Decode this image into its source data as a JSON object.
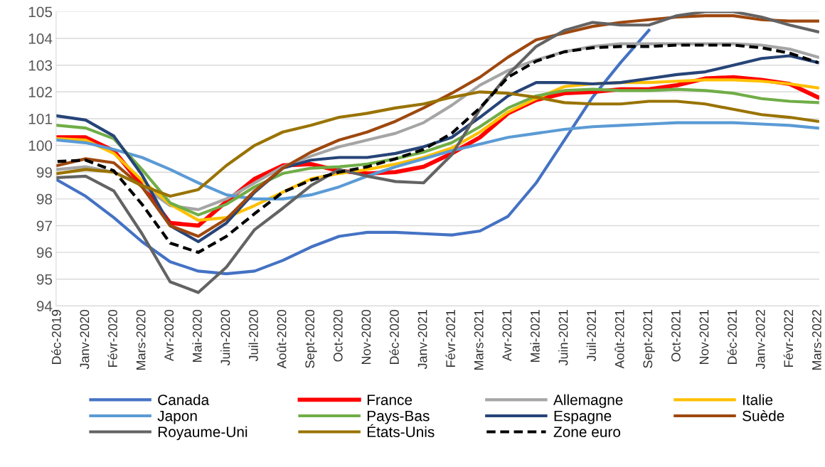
{
  "chart_data": {
    "type": "line",
    "categories": [
      "Déc-2019",
      "Janv-2020",
      "Févr-2020",
      "Mars-2020",
      "Avr-2020",
      "Mai-2020",
      "Juin-2020",
      "Juil-2020",
      "Août-2020",
      "Sept-2020",
      "Oct-2020",
      "Nov-2020",
      "Déc-2020",
      "Janv-2021",
      "Févr-2021",
      "Mars-2021",
      "Avr-2021",
      "Mai-2021",
      "Juin-2021",
      "Juil-2021",
      "Août-2021",
      "Sept-2021",
      "Oct-2021",
      "Nov-2021",
      "Déc-2021",
      "Janv-2022",
      "Févr-2022",
      "Mars-2022"
    ],
    "ylim": [
      94,
      105
    ],
    "yticks": [
      94,
      95,
      96,
      97,
      98,
      99,
      100,
      101,
      102,
      103,
      104,
      105
    ],
    "grid": "y",
    "legend": "bottom",
    "marker": "none",
    "series": [
      {
        "name": "Canada",
        "color": "#4472c4",
        "line_style": "solid",
        "values": [
          98.7,
          98.1,
          97.3,
          96.4,
          95.65,
          95.3,
          95.2,
          95.3,
          95.7,
          96.2,
          96.6,
          96.75,
          96.75,
          96.7,
          96.65,
          96.8,
          97.35,
          98.6,
          100.2,
          101.8,
          103.1,
          104.3,
          null,
          null,
          null,
          null,
          null,
          null
        ]
      },
      {
        "name": "France",
        "color": "#ff0000",
        "line_style": "solid",
        "values": [
          100.3,
          100.3,
          99.8,
          98.5,
          97.1,
          97.0,
          97.9,
          98.75,
          99.25,
          99.3,
          99.05,
          98.95,
          99.0,
          99.2,
          99.7,
          100.3,
          101.2,
          101.7,
          101.95,
          102.0,
          102.1,
          102.1,
          102.25,
          102.5,
          102.55,
          102.45,
          102.3,
          101.8
        ]
      },
      {
        "name": "Allemagne",
        "color": "#a5a5a5",
        "line_style": "solid",
        "values": [
          99.1,
          99.2,
          99.0,
          98.5,
          97.75,
          97.6,
          98.0,
          98.6,
          99.2,
          99.6,
          99.95,
          100.2,
          100.45,
          100.85,
          101.5,
          102.25,
          102.8,
          103.2,
          103.5,
          103.7,
          103.8,
          103.8,
          103.8,
          103.8,
          103.8,
          103.75,
          103.6,
          103.3
        ]
      },
      {
        "name": "Italie",
        "color": "#ffc000",
        "line_style": "solid",
        "values": [
          100.25,
          100.2,
          99.7,
          98.7,
          97.8,
          97.2,
          97.3,
          97.75,
          98.25,
          98.75,
          98.95,
          99.1,
          99.3,
          99.55,
          99.9,
          100.5,
          101.25,
          101.75,
          102.2,
          102.3,
          102.35,
          102.35,
          102.4,
          102.45,
          102.45,
          102.4,
          102.3,
          102.15
        ]
      },
      {
        "name": "Japon",
        "color": "#5b9bd5",
        "line_style": "solid",
        "values": [
          100.2,
          100.1,
          99.85,
          99.55,
          99.1,
          98.6,
          98.15,
          98.0,
          98.0,
          98.15,
          98.45,
          98.85,
          99.2,
          99.5,
          99.8,
          100.05,
          100.3,
          100.45,
          100.6,
          100.7,
          100.75,
          100.8,
          100.85,
          100.85,
          100.85,
          100.8,
          100.75,
          100.65
        ]
      },
      {
        "name": "Pays-Bas",
        "color": "#70ad47",
        "line_style": "solid",
        "values": [
          100.75,
          100.65,
          100.25,
          99.1,
          97.85,
          97.4,
          97.8,
          98.45,
          98.95,
          99.15,
          99.2,
          99.3,
          99.5,
          99.75,
          100.1,
          100.7,
          101.4,
          101.85,
          102.05,
          102.1,
          102.05,
          102.05,
          102.1,
          102.05,
          101.95,
          101.75,
          101.65,
          101.6
        ]
      },
      {
        "name": "Espagne",
        "color": "#264478",
        "line_style": "solid",
        "values": [
          101.1,
          100.95,
          100.35,
          98.9,
          97.0,
          96.4,
          97.1,
          98.25,
          99.15,
          99.45,
          99.55,
          99.55,
          99.7,
          99.95,
          100.3,
          101.05,
          101.85,
          102.35,
          102.35,
          102.3,
          102.35,
          102.5,
          102.65,
          102.75,
          103.0,
          103.25,
          103.35,
          103.1
        ]
      },
      {
        "name": "Suède",
        "color": "#9e480e",
        "line_style": "solid",
        "values": [
          99.25,
          99.5,
          99.35,
          98.45,
          97.0,
          96.6,
          97.25,
          98.3,
          99.15,
          99.75,
          100.2,
          100.5,
          100.9,
          101.4,
          101.95,
          102.55,
          103.3,
          103.95,
          104.2,
          104.45,
          104.6,
          104.7,
          104.8,
          104.85,
          104.85,
          104.7,
          104.65,
          104.65
        ]
      },
      {
        "name": "Royaume-Uni",
        "color": "#636363",
        "line_style": "solid",
        "values": [
          98.8,
          98.85,
          98.3,
          96.7,
          94.9,
          94.5,
          95.45,
          96.85,
          97.65,
          98.5,
          99.1,
          98.85,
          98.65,
          98.6,
          99.65,
          101.35,
          102.65,
          103.7,
          104.3,
          104.6,
          104.5,
          104.5,
          104.85,
          105.0,
          105.0,
          104.8,
          104.5,
          104.25
        ]
      },
      {
        "name": "États-Unis",
        "color": "#997300",
        "line_style": "solid",
        "values": [
          98.95,
          99.1,
          99.0,
          98.5,
          98.1,
          98.35,
          99.25,
          100.0,
          100.5,
          100.75,
          101.05,
          101.2,
          101.4,
          101.55,
          101.8,
          102.0,
          101.95,
          101.8,
          101.6,
          101.55,
          101.55,
          101.65,
          101.65,
          101.55,
          101.35,
          101.15,
          101.05,
          100.9
        ]
      },
      {
        "name": "Zone euro",
        "color": "#000000",
        "line_style": "dashed",
        "values": [
          99.4,
          99.45,
          99.05,
          97.8,
          96.35,
          96.0,
          96.6,
          97.45,
          98.25,
          98.7,
          99.0,
          99.2,
          99.5,
          99.85,
          100.45,
          101.4,
          102.55,
          103.15,
          103.5,
          103.65,
          103.7,
          103.7,
          103.75,
          103.75,
          103.75,
          103.65,
          103.45,
          103.1
        ]
      }
    ]
  }
}
